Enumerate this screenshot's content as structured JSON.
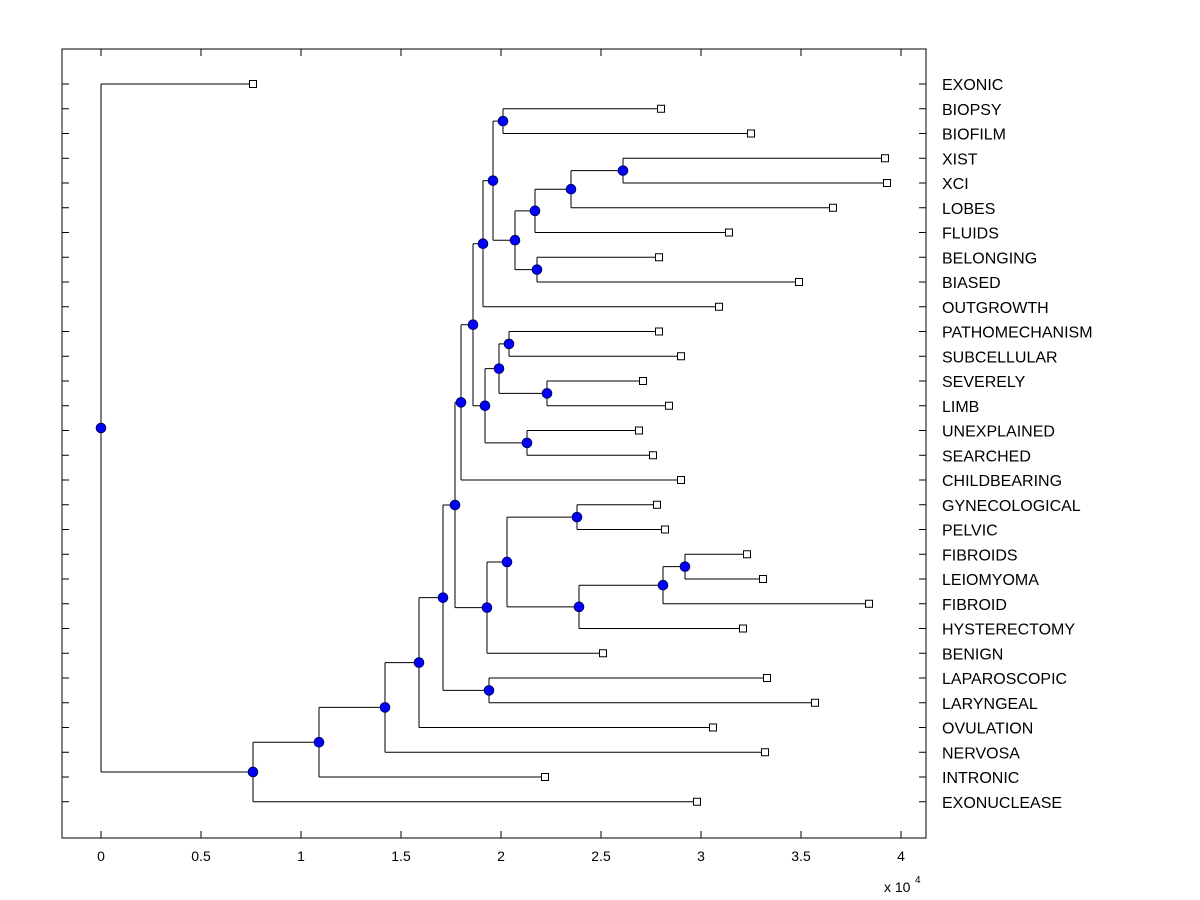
{
  "chart_data": {
    "type": "dendrogram",
    "title": "",
    "xlabel": "",
    "ylabel": "",
    "x_multiplier": {
      "text": "x 10",
      "exponent": "4"
    },
    "xlim": [
      -0.19,
      4.13
    ],
    "xticks": [
      0,
      0.5,
      1,
      1.5,
      2,
      2.5,
      3,
      3.5,
      4
    ],
    "xtick_labels": [
      "0",
      "0.5",
      "1",
      "1.5",
      "2",
      "2.5",
      "3",
      "3.5",
      "4"
    ],
    "grid": false,
    "leaf_count": 30,
    "leaves": [
      {
        "label": "EXONIC",
        "x": 0.76
      },
      {
        "label": "BIOPSY",
        "x": 2.8
      },
      {
        "label": "BIOFILM",
        "x": 3.25
      },
      {
        "label": "XIST",
        "x": 3.92
      },
      {
        "label": "XCI",
        "x": 3.93
      },
      {
        "label": "LOBES",
        "x": 3.66
      },
      {
        "label": "FLUIDS",
        "x": 3.14
      },
      {
        "label": "BELONGING",
        "x": 2.79
      },
      {
        "label": "BIASED",
        "x": 3.49
      },
      {
        "label": "OUTGROWTH",
        "x": 3.09
      },
      {
        "label": "PATHOMECHANISM",
        "x": 2.79
      },
      {
        "label": "SUBCELLULAR",
        "x": 2.9
      },
      {
        "label": "SEVERELY",
        "x": 2.71
      },
      {
        "label": "LIMB",
        "x": 2.84
      },
      {
        "label": "UNEXPLAINED",
        "x": 2.69
      },
      {
        "label": "SEARCHED",
        "x": 2.76
      },
      {
        "label": "CHILDBEARING",
        "x": 2.9
      },
      {
        "label": "GYNECOLOGICAL",
        "x": 2.78
      },
      {
        "label": "PELVIC",
        "x": 2.82
      },
      {
        "label": "FIBROIDS",
        "x": 3.23
      },
      {
        "label": "LEIOMYOMA",
        "x": 3.31
      },
      {
        "label": "FIBROID",
        "x": 3.84
      },
      {
        "label": "HYSTERECTOMY",
        "x": 3.21
      },
      {
        "label": "BENIGN",
        "x": 2.51
      },
      {
        "label": "LAPAROSCOPIC",
        "x": 3.33
      },
      {
        "label": "LARYNGEAL",
        "x": 3.57
      },
      {
        "label": "OVULATION",
        "x": 3.06
      },
      {
        "label": "NERVOSA",
        "x": 3.32
      },
      {
        "label": "INTRONIC",
        "x": 2.22
      },
      {
        "label": "EXONUCLEASE",
        "x": 2.98
      }
    ],
    "merges": [
      {
        "id": "N1",
        "x": 2.01,
        "children": [
          "L1",
          "L2"
        ]
      },
      {
        "id": "N2",
        "x": 2.61,
        "children": [
          "L3",
          "L4"
        ]
      },
      {
        "id": "N3",
        "x": 2.35,
        "children": [
          "N2",
          "L5"
        ]
      },
      {
        "id": "N4",
        "x": 2.17,
        "children": [
          "N3",
          "L6"
        ]
      },
      {
        "id": "N5",
        "x": 2.18,
        "children": [
          "L7",
          "L8"
        ]
      },
      {
        "id": "N6",
        "x": 2.07,
        "children": [
          "N4",
          "N5"
        ]
      },
      {
        "id": "N7",
        "x": 1.96,
        "children": [
          "N1",
          "N6"
        ]
      },
      {
        "id": "N8",
        "x": 1.91,
        "children": [
          "N7",
          "L9"
        ]
      },
      {
        "id": "N9",
        "x": 2.04,
        "children": [
          "L10",
          "L11"
        ]
      },
      {
        "id": "N10",
        "x": 2.23,
        "children": [
          "L12",
          "L13"
        ]
      },
      {
        "id": "N11",
        "x": 1.99,
        "children": [
          "N9",
          "N10"
        ]
      },
      {
        "id": "N12",
        "x": 2.13,
        "children": [
          "L14",
          "L15"
        ]
      },
      {
        "id": "N13",
        "x": 1.92,
        "children": [
          "N11",
          "N12"
        ]
      },
      {
        "id": "N14",
        "x": 1.86,
        "children": [
          "N8",
          "N13"
        ]
      },
      {
        "id": "N15",
        "x": 1.8,
        "children": [
          "N14",
          "L16"
        ]
      },
      {
        "id": "N16",
        "x": 2.38,
        "children": [
          "L17",
          "L18"
        ]
      },
      {
        "id": "N17",
        "x": 2.92,
        "children": [
          "L19",
          "L20"
        ]
      },
      {
        "id": "N18",
        "x": 2.81,
        "children": [
          "N17",
          "L21"
        ]
      },
      {
        "id": "N19",
        "x": 2.39,
        "children": [
          "N18",
          "L22"
        ]
      },
      {
        "id": "N20",
        "x": 2.03,
        "children": [
          "N16",
          "N19"
        ]
      },
      {
        "id": "N21",
        "x": 1.93,
        "children": [
          "N20",
          "L23"
        ]
      },
      {
        "id": "N22",
        "x": 1.77,
        "children": [
          "N15",
          "N21"
        ]
      },
      {
        "id": "N23",
        "x": 1.94,
        "children": [
          "L24",
          "L25"
        ]
      },
      {
        "id": "N24",
        "x": 1.71,
        "children": [
          "N22",
          "N23"
        ]
      },
      {
        "id": "N25",
        "x": 1.59,
        "children": [
          "N24",
          "L26"
        ]
      },
      {
        "id": "N26",
        "x": 1.42,
        "children": [
          "N25",
          "L27"
        ]
      },
      {
        "id": "N27",
        "x": 1.09,
        "children": [
          "N26",
          "L28"
        ]
      },
      {
        "id": "N28",
        "x": 0.76,
        "children": [
          "N27",
          "L29"
        ]
      },
      {
        "id": "N29",
        "x": 0.0,
        "children": [
          "L0",
          "N28"
        ]
      }
    ],
    "colors": {
      "node_fill": "#0000ff",
      "node_stroke": "#000066",
      "leaf_fill": "#ffffff",
      "line": "#000000",
      "axes": "#000000"
    }
  }
}
